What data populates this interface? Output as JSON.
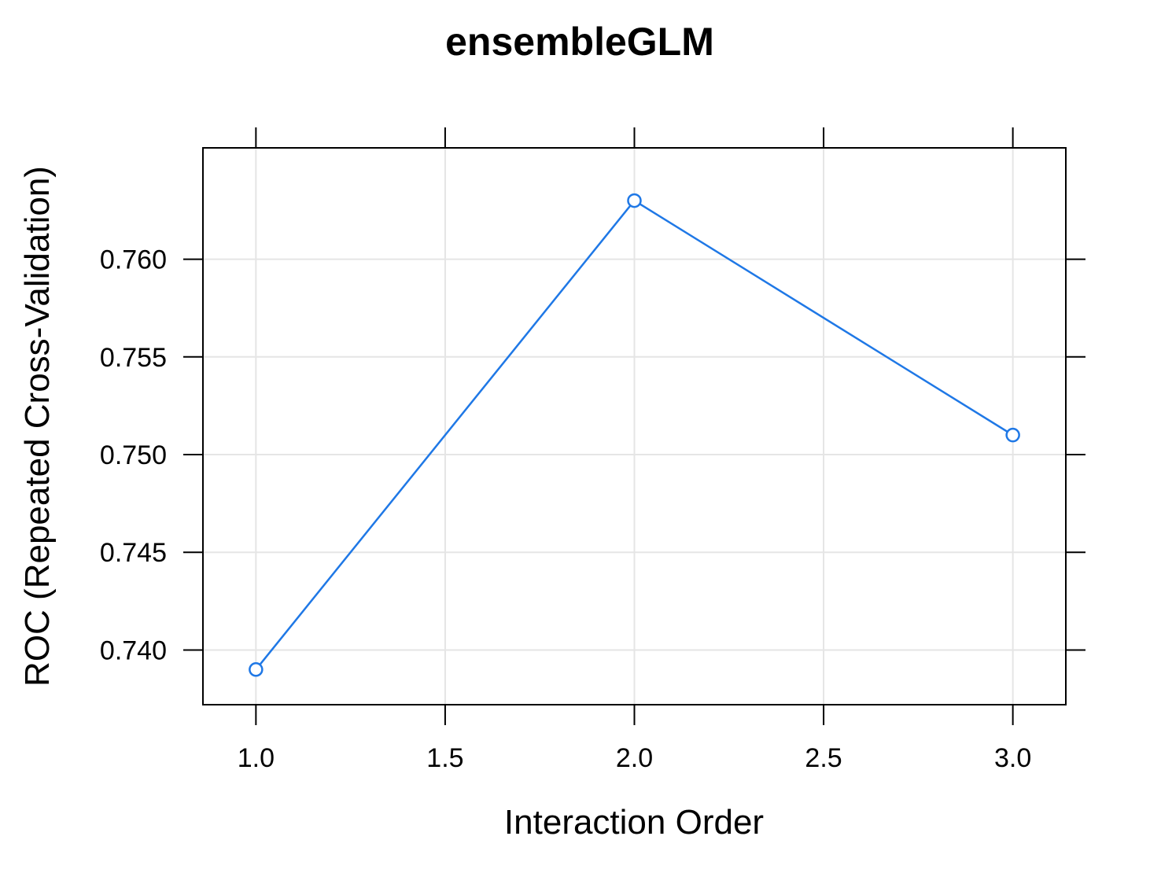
{
  "chart_data": {
    "type": "line",
    "title": "ensembleGLM",
    "xlabel": "Interaction Order",
    "ylabel": "ROC (Repeated Cross-Validation)",
    "x": [
      1.0,
      2.0,
      3.0
    ],
    "series": [
      {
        "values": [
          0.739,
          0.763,
          0.751
        ],
        "color": "#1f78e6",
        "marker": "open-circle"
      }
    ],
    "xlim": [
      0.86,
      3.14
    ],
    "ylim": [
      0.7372,
      0.7657
    ],
    "x_ticks": [
      1.0,
      1.5,
      2.0,
      2.5,
      3.0
    ],
    "x_tick_labels": [
      "1.0",
      "1.5",
      "2.0",
      "2.5",
      "3.0"
    ],
    "y_ticks": [
      0.74,
      0.745,
      0.75,
      0.755,
      0.76
    ],
    "y_tick_labels": [
      "0.740",
      "0.745",
      "0.750",
      "0.755",
      "0.760"
    ],
    "grid": true,
    "colors": {
      "series": "#1f78e6",
      "grid": "#e5e5e5",
      "frame": "#000000"
    }
  }
}
